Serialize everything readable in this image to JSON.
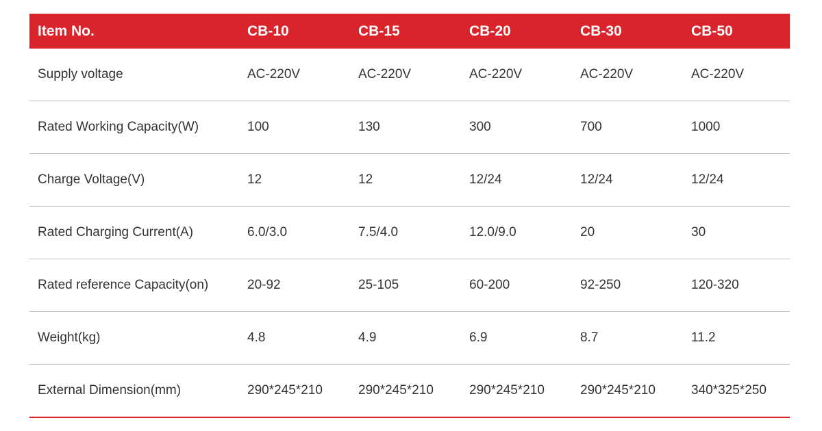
{
  "table": {
    "header": [
      "Item No.",
      "CB-10",
      "CB-15",
      "CB-20",
      "CB-30",
      "CB-50"
    ],
    "rows": [
      [
        "Supply voltage",
        "AC-220V",
        "AC-220V",
        "AC-220V",
        "AC-220V",
        "AC-220V"
      ],
      [
        "Rated Working Capacity(W)",
        "100",
        "130",
        "300",
        "700",
        "1000"
      ],
      [
        "Charge Voltage(V)",
        "12",
        "12",
        "12/24",
        "12/24",
        "12/24"
      ],
      [
        "Rated Charging Current(A)",
        "6.0/3.0",
        "7.5/4.0",
        "12.0/9.0",
        "20",
        "30"
      ],
      [
        "Rated reference Capacity(on)",
        "20-92",
        "25-105",
        "60-200",
        "92-250",
        "120-320"
      ],
      [
        "Weight(kg)",
        "4.8",
        "4.9",
        "6.9",
        "8.7",
        "11.2"
      ],
      [
        "External Dimension(mm)",
        "290*245*210",
        "290*245*210",
        "290*245*210",
        "290*245*210",
        "340*325*250"
      ]
    ]
  },
  "colors": {
    "header_bg": "#d8242a",
    "header_text": "#ffffff",
    "body_text": "#333333",
    "row_divider": "#b9b9b9",
    "bottom_rule": "#d8242a"
  }
}
